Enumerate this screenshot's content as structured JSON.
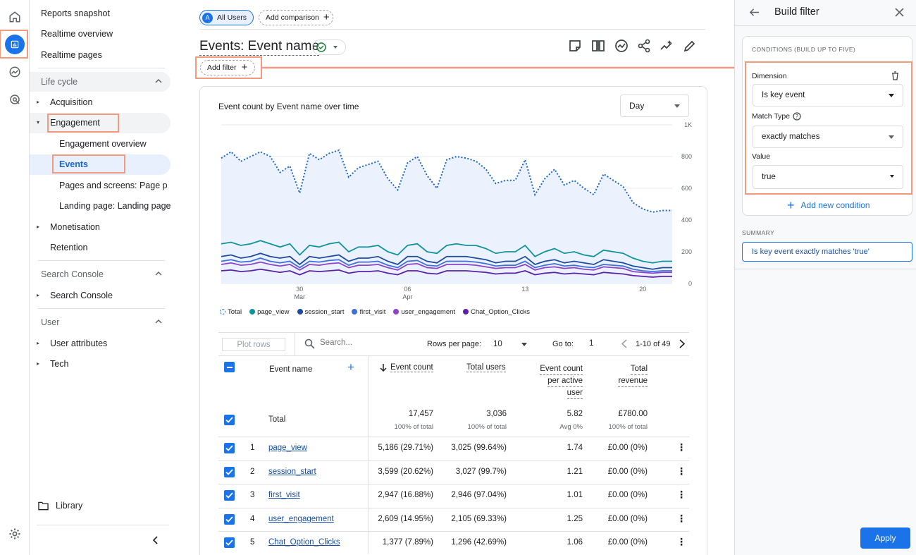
{
  "nav": {
    "top_items": [
      "Reports snapshot",
      "Realtime overview",
      "Realtime pages"
    ],
    "lifecycle": {
      "label": "Life cycle",
      "acquisition": "Acquisition",
      "engagement": "Engagement",
      "engagement_overview": "Engagement overview",
      "events": "Events",
      "pages_and_screens": "Pages and screens: Page p...",
      "landing_page": "Landing page: Landing page",
      "monetisation": "Monetisation",
      "retention": "Retention"
    },
    "search_console": {
      "label": "Search Console",
      "item": "Search Console"
    },
    "user": {
      "label": "User",
      "user_attributes": "User attributes",
      "tech": "Tech"
    },
    "library": "Library"
  },
  "header": {
    "all_users_badge": "A",
    "all_users": "All Users",
    "add_comparison": "Add comparison",
    "title": "Events: Event name",
    "add_filter": "Add filter"
  },
  "chart": {
    "title": "Event count by Event name over time",
    "granularity": "Day",
    "y_ticks": [
      "1K",
      "800",
      "600",
      "400",
      "200",
      "0"
    ],
    "x_ticks": [
      {
        "day": "30",
        "month": "Mar"
      },
      {
        "day": "06",
        "month": "Apr"
      },
      {
        "day": "13",
        "month": ""
      },
      {
        "day": "20",
        "month": ""
      }
    ],
    "legend": [
      "Total",
      "page_view",
      "session_start",
      "first_visit",
      "user_engagement",
      "Chat_Option_Clicks"
    ]
  },
  "chart_data": {
    "type": "line",
    "title": "Event count by Event name over time",
    "xlabel": "",
    "ylabel": "",
    "ylim": [
      0,
      1000
    ],
    "x_ticks": [
      "30 Mar",
      "06 Apr",
      "13",
      "20"
    ],
    "legend_position": "bottom",
    "grid": true,
    "series": [
      {
        "name": "Total",
        "color": "#1a67c8",
        "style": "dotted",
        "values": [
          790,
          830,
          770,
          800,
          830,
          800,
          700,
          740,
          570,
          820,
          780,
          820,
          840,
          670,
          730,
          750,
          770,
          660,
          590,
          760,
          800,
          680,
          600,
          780,
          800,
          790,
          770,
          720,
          630,
          650,
          650,
          780,
          560,
          660,
          720,
          620,
          650,
          600,
          560,
          690,
          650,
          610,
          510,
          470,
          450,
          460,
          460
        ]
      },
      {
        "name": "page_view",
        "color": "#12939a",
        "values": [
          250,
          260,
          240,
          250,
          270,
          250,
          230,
          250,
          180,
          240,
          230,
          250,
          260,
          200,
          230,
          230,
          240,
          200,
          180,
          240,
          250,
          200,
          190,
          240,
          250,
          240,
          240,
          220,
          190,
          200,
          200,
          240,
          170,
          200,
          220,
          190,
          200,
          180,
          170,
          210,
          200,
          190,
          160,
          140,
          130,
          140,
          140
        ]
      },
      {
        "name": "session_start",
        "color": "#1e4ba0",
        "values": [
          170,
          180,
          160,
          170,
          190,
          170,
          160,
          170,
          120,
          170,
          160,
          170,
          180,
          140,
          160,
          160,
          170,
          140,
          120,
          170,
          170,
          140,
          130,
          170,
          170,
          170,
          160,
          150,
          130,
          140,
          140,
          170,
          120,
          140,
          150,
          130,
          140,
          130,
          120,
          150,
          140,
          130,
          110,
          100,
          90,
          100,
          100
        ]
      },
      {
        "name": "first_visit",
        "color": "#3f6fd8",
        "values": [
          140,
          150,
          135,
          140,
          160,
          140,
          130,
          140,
          100,
          140,
          135,
          145,
          150,
          115,
          135,
          135,
          140,
          115,
          100,
          140,
          145,
          115,
          110,
          140,
          140,
          140,
          135,
          125,
          110,
          115,
          115,
          140,
          100,
          115,
          125,
          110,
          115,
          105,
          100,
          120,
          115,
          110,
          90,
          80,
          75,
          80,
          80
        ]
      },
      {
        "name": "user_engagement",
        "color": "#8e44c8",
        "values": [
          120,
          130,
          115,
          120,
          135,
          120,
          110,
          120,
          85,
          120,
          115,
          125,
          130,
          100,
          115,
          115,
          120,
          100,
          85,
          120,
          125,
          100,
          95,
          120,
          120,
          120,
          115,
          105,
          95,
          100,
          100,
          120,
          85,
          100,
          105,
          95,
          100,
          90,
          85,
          105,
          100,
          95,
          75,
          70,
          65,
          70,
          70
        ]
      },
      {
        "name": "Chat_Option_Clicks",
        "color": "#5b21a6",
        "values": [
          80,
          85,
          75,
          80,
          90,
          80,
          70,
          80,
          55,
          80,
          75,
          80,
          85,
          65,
          75,
          75,
          80,
          65,
          55,
          80,
          80,
          65,
          60,
          80,
          80,
          80,
          75,
          70,
          60,
          65,
          65,
          80,
          55,
          65,
          70,
          60,
          65,
          60,
          55,
          70,
          65,
          60,
          50,
          45,
          40,
          45,
          45
        ]
      }
    ]
  },
  "table_controls": {
    "plot_rows": "Plot rows",
    "search_placeholder": "Search...",
    "rows_per_page_label": "Rows per page:",
    "rows_per_page": "10",
    "go_to_label": "Go to:",
    "go_to": "1",
    "range": "1-10 of 49"
  },
  "table": {
    "headers": {
      "event_name": "Event name",
      "event_count": "Event count",
      "total_users": "Total users",
      "event_count_per_user_1": "Event count",
      "event_count_per_user_2": "per active",
      "event_count_per_user_3": "user",
      "total_revenue_1": "Total",
      "total_revenue_2": "revenue"
    },
    "total": {
      "label": "Total",
      "event_count": "17,457",
      "event_count_sub": "100% of total",
      "total_users": "3,036",
      "total_users_sub": "100% of total",
      "per_user": "5.82",
      "per_user_sub": "Avg 0%",
      "revenue": "£780.00",
      "revenue_sub": "100% of total"
    },
    "rows": [
      {
        "idx": "1",
        "name": "page_view",
        "count": "5,186 (29.71%)",
        "users": "3,025 (99.64%)",
        "per_user": "1.74",
        "revenue": "£0.00 (0%)"
      },
      {
        "idx": "2",
        "name": "session_start",
        "count": "3,599 (20.62%)",
        "users": "3,027 (99.7%)",
        "per_user": "1.21",
        "revenue": "£0.00 (0%)"
      },
      {
        "idx": "3",
        "name": "first_visit",
        "count": "2,947 (16.88%)",
        "users": "2,946 (97.04%)",
        "per_user": "1.01",
        "revenue": "£0.00 (0%)"
      },
      {
        "idx": "4",
        "name": "user_engagement",
        "count": "2,609 (14.95%)",
        "users": "2,105 (69.33%)",
        "per_user": "1.25",
        "revenue": "£0.00 (0%)"
      },
      {
        "idx": "5",
        "name": "Chat_Option_Clicks",
        "count": "1,377 (7.89%)",
        "users": "1,296 (42.69%)",
        "per_user": "1.06",
        "revenue": "£0.00 (0%)"
      }
    ]
  },
  "panel": {
    "title": "Build filter",
    "conditions_label": "CONDITIONS (BUILD UP TO FIVE)",
    "dimension_label": "Dimension",
    "dimension_value": "Is key event",
    "match_type_label": "Match Type",
    "match_type_value": "exactly matches",
    "value_label": "Value",
    "value_value": "true",
    "add_condition": "Add new condition",
    "summary_label": "SUMMARY",
    "summary": "Is key event exactly matches 'true'",
    "apply": "Apply"
  }
}
